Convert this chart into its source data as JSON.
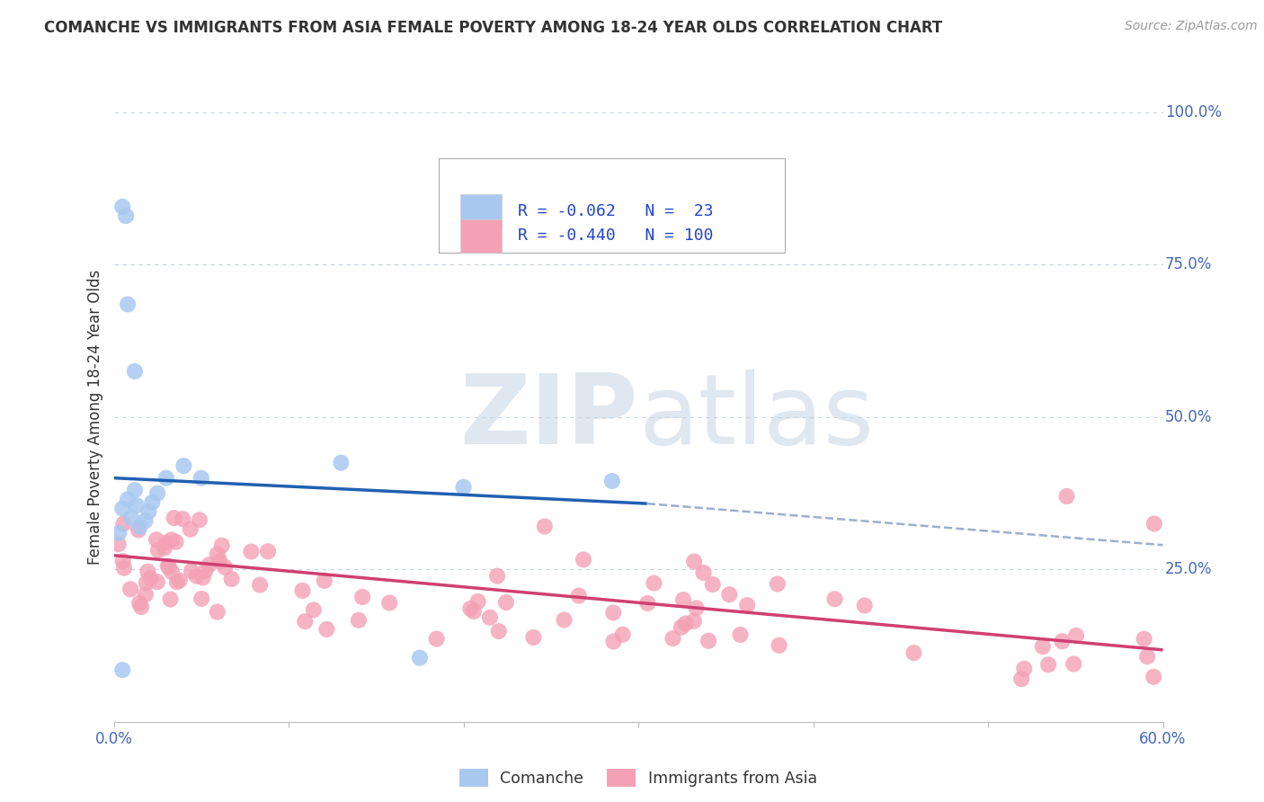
{
  "title": "COMANCHE VS IMMIGRANTS FROM ASIA FEMALE POVERTY AMONG 18-24 YEAR OLDS CORRELATION CHART",
  "source": "Source: ZipAtlas.com",
  "ylabel": "Female Poverty Among 18-24 Year Olds",
  "xlim": [
    0.0,
    0.6
  ],
  "ylim": [
    0.0,
    1.0
  ],
  "comanche_R": -0.062,
  "comanche_N": 23,
  "asia_R": -0.44,
  "asia_N": 100,
  "watermark_zip": "ZIP",
  "watermark_atlas": "atlas",
  "comanche_color": "#a8c8f0",
  "asia_color": "#f4a0b5",
  "blue_line_color": "#2060b0",
  "pink_line_color": "#d04070",
  "dashed_line_color": "#9ab0cc",
  "background_color": "#ffffff",
  "grid_color": "#c8d4e0",
  "title_color": "#333333",
  "source_color": "#999999",
  "tick_color": "#4466bb",
  "label_color": "#333333"
}
